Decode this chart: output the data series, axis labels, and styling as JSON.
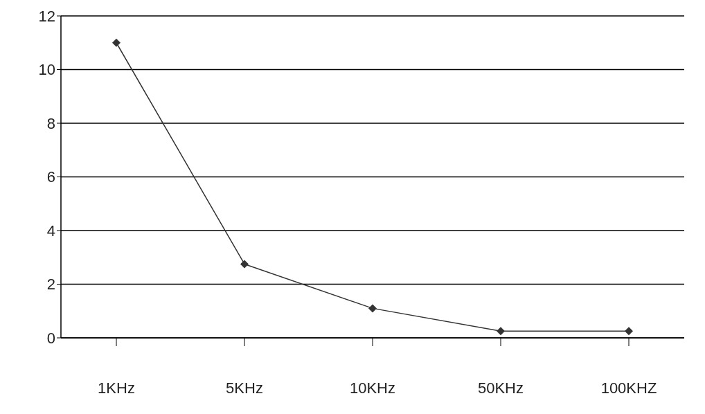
{
  "chart_data": {
    "type": "line",
    "categories": [
      "1KHz",
      "5KHz",
      "10KHz",
      "50KHz",
      "100KHZ"
    ],
    "series": [
      {
        "color": "#333333",
        "values": [
          11,
          2.75,
          1.1,
          0.25,
          0.25
        ]
      }
    ],
    "ylim": [
      0,
      12
    ],
    "yticks": [
      0,
      2,
      4,
      6,
      8,
      10,
      12
    ],
    "grid": "y",
    "marker": "diamond",
    "line_style": "solid",
    "legend": false
  }
}
